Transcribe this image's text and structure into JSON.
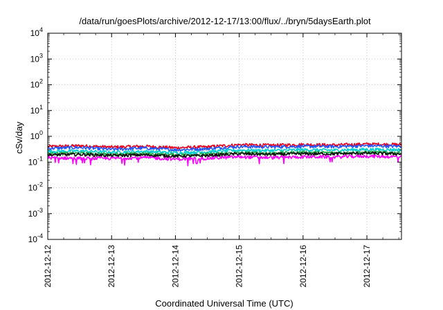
{
  "chart_data": {
    "type": "line",
    "title": "/data/run/goesPlots/archive/2012-12-17/13:00/flux/../bryn/5daysEarth.plot",
    "xlabel": "Coordinated Universal Time (UTC)",
    "ylabel": "cSv/day",
    "yscale": "log",
    "ylim": [
      0.0001,
      10000
    ],
    "xlim": [
      "2012-12-12T00:00",
      "2012-12-17T13:00"
    ],
    "grid": true,
    "legend": "none",
    "x_tick_labels": [
      "2012-12-12",
      "2012-12-13",
      "2012-12-14",
      "2012-12-15",
      "2012-12-16",
      "2012-12-17"
    ],
    "y_tick_labels": [
      {
        "base": "10",
        "exp": "4"
      },
      {
        "base": "10",
        "exp": "3"
      },
      {
        "base": "10",
        "exp": "2"
      },
      {
        "base": "10",
        "exp": "1"
      },
      {
        "base": "10",
        "exp": "0"
      },
      {
        "base": "10",
        "exp": "-1"
      },
      {
        "base": "10",
        "exp": "-2"
      },
      {
        "base": "10",
        "exp": "-3"
      },
      {
        "base": "10",
        "exp": "-4"
      }
    ],
    "series": [
      {
        "color": "#e8001c",
        "values": [
          [
            0,
            0.4
          ],
          [
            0.5,
            0.43
          ],
          [
            1,
            0.38
          ],
          [
            1.5,
            0.41
          ],
          [
            2,
            0.36
          ],
          [
            2.5,
            0.39
          ],
          [
            3,
            0.47
          ],
          [
            3.5,
            0.45
          ],
          [
            4,
            0.48
          ],
          [
            4.5,
            0.46
          ],
          [
            5,
            0.5
          ],
          [
            5.54,
            0.48
          ]
        ]
      },
      {
        "color": "#2255ff",
        "values": [
          [
            0,
            0.34
          ],
          [
            0.5,
            0.37
          ],
          [
            1,
            0.31
          ],
          [
            1.5,
            0.35
          ],
          [
            2,
            0.3
          ],
          [
            2.5,
            0.33
          ],
          [
            3,
            0.4
          ],
          [
            3.5,
            0.39
          ],
          [
            4,
            0.41
          ],
          [
            4.5,
            0.4
          ],
          [
            5,
            0.43
          ],
          [
            5.54,
            0.41
          ]
        ]
      },
      {
        "color": "#00d0d0",
        "values": [
          [
            0,
            0.26
          ],
          [
            0.5,
            0.27
          ],
          [
            1,
            0.24
          ],
          [
            1.5,
            0.26
          ],
          [
            2,
            0.23
          ],
          [
            2.5,
            0.25
          ],
          [
            3,
            0.29
          ],
          [
            3.5,
            0.28
          ],
          [
            4,
            0.3
          ],
          [
            4.5,
            0.29
          ],
          [
            5,
            0.31
          ],
          [
            5.54,
            0.3
          ]
        ]
      },
      {
        "color": "#22aa44",
        "values": [
          [
            0,
            0.21
          ],
          [
            0.5,
            0.22
          ],
          [
            1,
            0.2
          ],
          [
            1.5,
            0.21
          ],
          [
            2,
            0.19
          ],
          [
            2.5,
            0.2
          ],
          [
            3,
            0.23
          ],
          [
            3.5,
            0.22
          ],
          [
            4,
            0.24
          ],
          [
            4.5,
            0.23
          ],
          [
            5,
            0.24
          ],
          [
            5.54,
            0.23
          ]
        ]
      },
      {
        "color": "#111111",
        "values": [
          [
            0,
            0.19
          ],
          [
            0.5,
            0.2
          ],
          [
            1,
            0.18
          ],
          [
            1.5,
            0.19
          ],
          [
            2,
            0.17
          ],
          [
            2.5,
            0.18
          ],
          [
            3,
            0.21
          ],
          [
            3.5,
            0.2
          ],
          [
            4,
            0.21
          ],
          [
            4.5,
            0.21
          ],
          [
            5,
            0.22
          ],
          [
            5.54,
            0.21
          ]
        ]
      },
      {
        "color": "#ff00ff",
        "values": [
          [
            0,
            0.15
          ],
          [
            0.5,
            0.14
          ],
          [
            1,
            0.14
          ],
          [
            1.5,
            0.15
          ],
          [
            2,
            0.13
          ],
          [
            2.5,
            0.14
          ],
          [
            3,
            0.16
          ],
          [
            3.5,
            0.15
          ],
          [
            4,
            0.16
          ],
          [
            4.5,
            0.16
          ],
          [
            5,
            0.17
          ],
          [
            5.54,
            0.16
          ]
        ]
      }
    ]
  }
}
